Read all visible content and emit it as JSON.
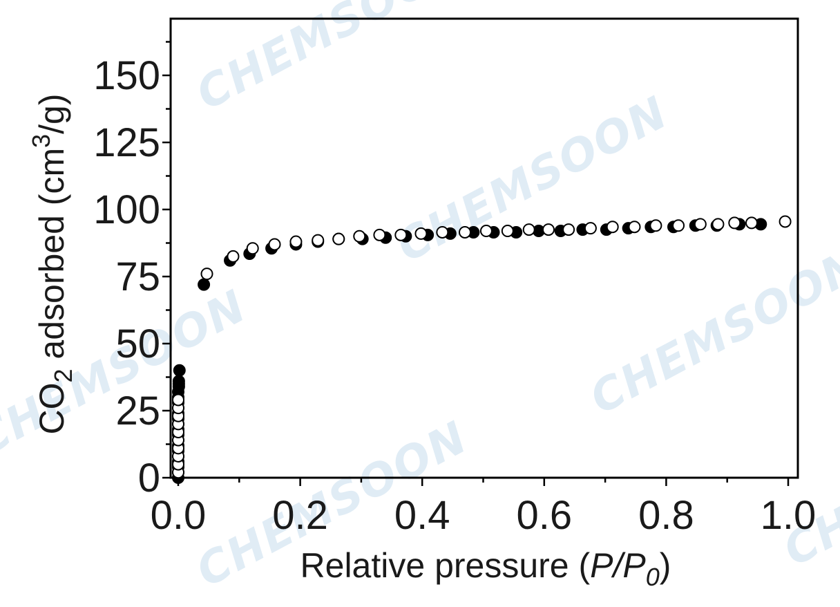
{
  "watermark_text": "CHEMSOON",
  "chart_data": {
    "type": "scatter",
    "xlabel_prefix": "Relative pressure (",
    "xlabel_P": "P",
    "xlabel_slash": "/",
    "xlabel_P0": "P",
    "xlabel_sub": "0",
    "xlabel_suffix": ")",
    "ylabel_prefix": "CO",
    "ylabel_sub": "2",
    "ylabel_mid": " adsorbed (cm",
    "ylabel_sup": "3",
    "ylabel_suffix": "/g)",
    "xlim": [
      0.0,
      1.0
    ],
    "ylim": [
      0,
      165
    ],
    "xticks": [
      "0.0",
      "0.2",
      "0.4",
      "0.6",
      "0.8",
      "1.0"
    ],
    "yticks": [
      "0",
      "25",
      "50",
      "75",
      "100",
      "125",
      "150"
    ],
    "grid": false,
    "series": [
      {
        "marker": "filled-circle",
        "color": "#000000",
        "x": [
          0.0,
          0.0,
          0.0,
          0.0,
          0.0,
          0.0,
          0.0,
          0.0,
          0.0,
          0.0,
          0.0,
          0.0,
          0.0,
          0.0,
          0.0,
          0.0,
          0.0,
          0.001,
          0.001,
          0.001,
          0.002,
          0.042,
          0.085,
          0.117,
          0.153,
          0.193,
          0.229,
          0.263,
          0.302,
          0.34,
          0.373,
          0.409,
          0.446,
          0.484,
          0.517,
          0.554,
          0.591,
          0.627,
          0.663,
          0.702,
          0.738,
          0.775,
          0.812,
          0.848,
          0.883,
          0.92,
          0.955
        ],
        "y": [
          0,
          2,
          4,
          6,
          8,
          10,
          12,
          14,
          16,
          18,
          20,
          22,
          24,
          26,
          28,
          30,
          32,
          34,
          35,
          36,
          40,
          72,
          81,
          83.5,
          85.5,
          87,
          88,
          89,
          89,
          89.5,
          90,
          90.5,
          91,
          91.5,
          91.5,
          91.5,
          92,
          92,
          92.5,
          92.5,
          93,
          93.5,
          93.5,
          94,
          94,
          94.5,
          94.5
        ]
      },
      {
        "marker": "open-circle",
        "color": "#000000",
        "x": [
          0.0,
          0.0,
          0.0,
          0.0,
          0.0,
          0.0,
          0.0,
          0.0,
          0.0,
          0.0,
          0.047,
          0.09,
          0.122,
          0.158,
          0.193,
          0.229,
          0.263,
          0.297,
          0.33,
          0.365,
          0.398,
          0.433,
          0.47,
          0.505,
          0.54,
          0.575,
          0.607,
          0.64,
          0.676,
          0.712,
          0.748,
          0.783,
          0.82,
          0.856,
          0.885,
          0.912,
          0.94,
          0.995
        ],
        "y": [
          2,
          5,
          8,
          11,
          14,
          17,
          20,
          23,
          26,
          29,
          76,
          82.5,
          85.5,
          87,
          88,
          88.5,
          89,
          90,
          90.5,
          90.5,
          91,
          91.5,
          91.5,
          92,
          92,
          92.5,
          92.5,
          92.5,
          93,
          93.5,
          93.5,
          94,
          94,
          94.5,
          94.5,
          95,
          95,
          95.5
        ]
      }
    ]
  }
}
